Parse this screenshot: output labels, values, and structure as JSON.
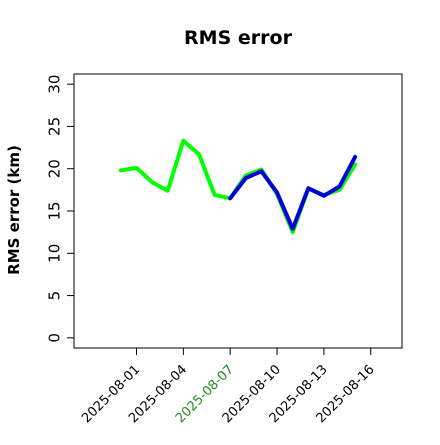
{
  "chart_data": {
    "type": "line",
    "title": "RMS error",
    "xlabel": "",
    "ylabel": "RMS error (km)",
    "x_range": [
      "2025-07-28",
      "2025-08-18"
    ],
    "ylim": [
      -1.2,
      31.2
    ],
    "yticks": [
      0,
      5,
      10,
      15,
      20,
      25,
      30
    ],
    "xticks": [
      "2025-08-01",
      "2025-08-04",
      "2025-08-07",
      "2025-08-10",
      "2025-08-13",
      "2025-08-16"
    ],
    "highlighted_tick": "2025-08-07",
    "highlight_color": "#228b22",
    "grid": false,
    "legend": "none",
    "series": [
      {
        "color": "#00ff00",
        "x": [
          "2025-07-31",
          "2025-08-01",
          "2025-08-02",
          "2025-08-03",
          "2025-08-04",
          "2025-08-05",
          "2025-08-06",
          "2025-08-07",
          "2025-08-08",
          "2025-08-09",
          "2025-08-10",
          "2025-08-11",
          "2025-08-12",
          "2025-08-13",
          "2025-08-14",
          "2025-08-15"
        ],
        "values": [
          19.8,
          20.1,
          18.4,
          17.4,
          23.3,
          21.7,
          16.9,
          16.5,
          19.2,
          19.9,
          17.0,
          12.5,
          17.6,
          16.9,
          17.5,
          20.5
        ]
      },
      {
        "color": "#0000dd",
        "x": [
          "2025-08-07",
          "2025-08-08",
          "2025-08-09",
          "2025-08-10",
          "2025-08-11",
          "2025-08-12",
          "2025-08-13",
          "2025-08-14",
          "2025-08-15"
        ],
        "values": [
          16.5,
          18.9,
          19.7,
          17.2,
          12.9,
          17.7,
          16.8,
          17.9,
          21.4
        ]
      }
    ]
  }
}
